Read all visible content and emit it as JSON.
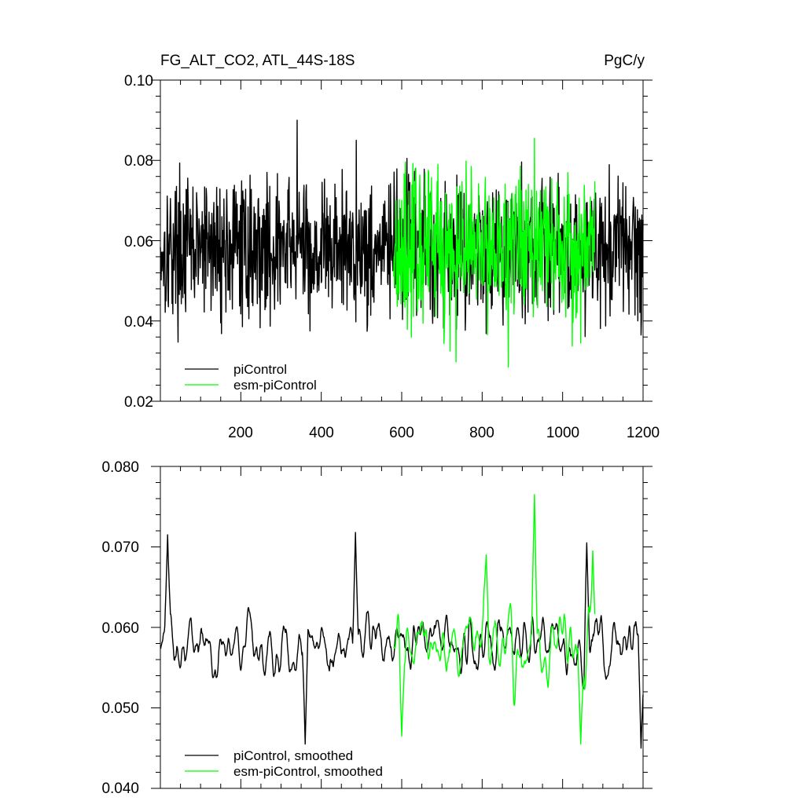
{
  "chart_data": [
    {
      "type": "line",
      "title": "FG_ALT_CO2, ATL_44S-18S",
      "units": "PgC/y",
      "xlim": [
        0,
        1200
      ],
      "ylim": [
        0.02,
        0.1
      ],
      "x_ticks": [
        "200",
        "400",
        "600",
        "800",
        "1000",
        "1200"
      ],
      "y_ticks": [
        "0.02",
        "0.04",
        "0.06",
        "0.08",
        "0.10"
      ],
      "legend_position": "bottom-left",
      "series": [
        {
          "name": "piControl",
          "color": "#000000",
          "x_start": 0,
          "x_end": 1200,
          "mean": 0.058,
          "amplitude": 0.0085,
          "highlights": [
            [
              340,
              0.09
            ],
            [
              487,
              0.085
            ],
            [
              372,
              0.0375
            ],
            [
              515,
              0.039
            ],
            [
              1195,
              0.0365
            ]
          ]
        },
        {
          "name": "esm-piControl",
          "color": "#00ff00",
          "x_start": 580,
          "x_end": 1080,
          "mean": 0.059,
          "amplitude": 0.0095,
          "highlights": [
            [
              930,
              0.0855
            ],
            [
              865,
              0.0285
            ],
            [
              735,
              0.0298
            ],
            [
              720,
              0.0325
            ],
            [
              1045,
              0.0345
            ]
          ]
        }
      ]
    },
    {
      "type": "line",
      "title": "",
      "xlim": [
        0,
        1200
      ],
      "ylim": [
        0.04,
        0.08
      ],
      "y_ticks": [
        "0.040",
        "0.050",
        "0.060",
        "0.070",
        "0.080"
      ],
      "legend_position": "bottom-left",
      "series": [
        {
          "name": "piControl, smoothed",
          "color": "#000000",
          "x_start": 0,
          "x_end": 1200,
          "mean": 0.058,
          "amplitude": 0.0035,
          "highlights": [
            [
              18,
              0.0715
            ],
            [
              485,
              0.0718
            ],
            [
              360,
              0.0455
            ],
            [
              1195,
              0.045
            ],
            [
              1060,
              0.0705
            ]
          ]
        },
        {
          "name": "esm-piControl, smoothed",
          "color": "#00ff00",
          "x_start": 580,
          "x_end": 1080,
          "mean": 0.0575,
          "amplitude": 0.0045,
          "highlights": [
            [
              930,
              0.0765
            ],
            [
              600,
              0.0465
            ],
            [
              1045,
              0.0455
            ],
            [
              810,
              0.069
            ],
            [
              1075,
              0.0695
            ]
          ]
        }
      ]
    }
  ]
}
